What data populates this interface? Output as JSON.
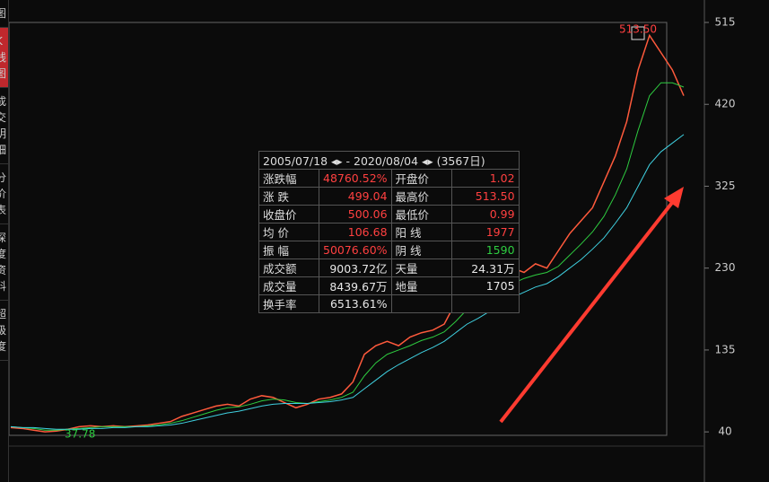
{
  "chart_data": {
    "type": "line",
    "categories": [
      null,
      null,
      null,
      null,
      null,
      null,
      null,
      null,
      null,
      null,
      null,
      null,
      null,
      null,
      null,
      null,
      null,
      null,
      null,
      null,
      null,
      null,
      null,
      null,
      null,
      null,
      null,
      null,
      null,
      null,
      null,
      null,
      null,
      null,
      null,
      null,
      null,
      null,
      null,
      null,
      null,
      null,
      null,
      null,
      null,
      null,
      null,
      null,
      null,
      null,
      null,
      null,
      null,
      null,
      null,
      null,
      null,
      null,
      null,
      null
    ],
    "series": [
      {
        "name": null,
        "color": "#ff5a3c",
        "values": [
          45,
          44,
          42,
          40,
          41,
          43,
          46,
          47,
          46,
          47,
          46,
          47,
          48,
          50,
          52,
          58,
          62,
          66,
          70,
          72,
          70,
          78,
          82,
          80,
          74,
          68,
          72,
          78,
          80,
          84,
          98,
          130,
          140,
          145,
          140,
          150,
          155,
          158,
          165,
          190,
          205,
          200,
          215,
          220,
          230,
          225,
          235,
          230,
          250,
          270,
          285,
          300,
          330,
          360,
          400,
          460,
          500,
          480,
          460,
          430
        ]
      },
      {
        "name": null,
        "color": "#2ecc40",
        "values": [
          46,
          45,
          44,
          42,
          42,
          43,
          44,
          45,
          46,
          46,
          46,
          46,
          47,
          48,
          50,
          53,
          57,
          61,
          65,
          68,
          69,
          72,
          76,
          78,
          77,
          74,
          73,
          75,
          77,
          80,
          86,
          105,
          120,
          130,
          135,
          140,
          146,
          150,
          156,
          168,
          182,
          190,
          198,
          205,
          212,
          218,
          222,
          225,
          232,
          245,
          258,
          272,
          290,
          315,
          345,
          390,
          430,
          445,
          445,
          440
        ]
      },
      {
        "name": null,
        "color": "#3fd0e0",
        "values": [
          46,
          45,
          45,
          44,
          43,
          43,
          43,
          44,
          44,
          45,
          45,
          46,
          46,
          47,
          48,
          50,
          53,
          56,
          59,
          62,
          64,
          67,
          70,
          72,
          73,
          73,
          73,
          74,
          75,
          77,
          80,
          90,
          100,
          110,
          118,
          125,
          132,
          138,
          145,
          155,
          165,
          172,
          180,
          188,
          196,
          202,
          208,
          212,
          220,
          230,
          240,
          252,
          265,
          282,
          300,
          325,
          350,
          365,
          375,
          385
        ]
      }
    ],
    "ylim": [
      36,
      515
    ],
    "yticks": [
      40,
      135,
      230,
      325,
      420,
      515
    ],
    "annotations": [
      {
        "text": "513.50",
        "color": "#ff4040"
      },
      {
        "text": "37.78",
        "color": "#2ecc40"
      }
    ]
  },
  "sidebar": [
    "图",
    "K线图",
    "成交明细",
    "分价表",
    "深度资料",
    "超级度"
  ],
  "stats_panel": {
    "title": "2005/07/18 ◂▸ - 2020/08/04 ◂▸ (3567日)",
    "rows": [
      [
        {
          "text": "涨跌幅"
        },
        {
          "text": "48760.52%",
          "color": "#ff4040"
        },
        {
          "text": "开盘价"
        },
        {
          "text": "1.02",
          "color": "#ff4040"
        }
      ],
      [
        {
          "text": "涨  跌"
        },
        {
          "text": "499.04",
          "color": "#ff4040"
        },
        {
          "text": "最高价"
        },
        {
          "text": "513.50",
          "color": "#ff4040"
        }
      ],
      [
        {
          "text": "收盘价"
        },
        {
          "text": "500.06",
          "color": "#ff4040"
        },
        {
          "text": "最低价"
        },
        {
          "text": "0.99",
          "color": "#ff4040"
        }
      ],
      [
        {
          "text": "均  价"
        },
        {
          "text": "106.68",
          "color": "#ff4040"
        },
        {
          "text": "阳  线"
        },
        {
          "text": "1977",
          "color": "#ff4040"
        }
      ],
      [
        {
          "text": "振  幅"
        },
        {
          "text": "50076.60%",
          "color": "#ff4040"
        },
        {
          "text": "阴  线"
        },
        {
          "text": "1590",
          "color": "#2ecc40"
        }
      ],
      [
        {
          "text": "成交额"
        },
        {
          "text": "9003.72亿",
          "color": "#e8e8e8"
        },
        {
          "text": "天量"
        },
        {
          "text": "24.31万",
          "color": "#e8e8e8"
        }
      ],
      [
        {
          "text": "成交量"
        },
        {
          "text": "8439.67万",
          "color": "#e8e8e8"
        },
        {
          "text": "地量"
        },
        {
          "text": "1705",
          "color": "#e8e8e8"
        }
      ],
      [
        {
          "text": "换手率"
        },
        {
          "text": "6513.61%",
          "color": "#e8e8e8"
        }
      ]
    ]
  }
}
